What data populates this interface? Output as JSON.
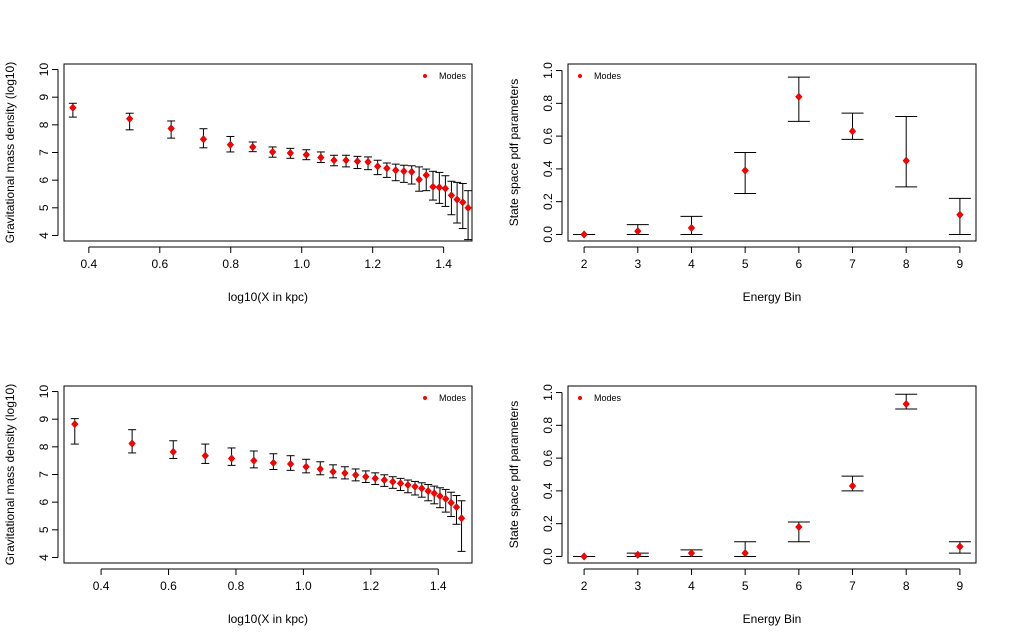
{
  "chart_data": [
    {
      "type": "scatter",
      "xlabel": "log10(X in kpc)",
      "ylabel": "Gravitational mass density (log10)",
      "xlim": [
        0.33,
        1.48
      ],
      "ylim": [
        3.8,
        10.2
      ],
      "xticks": [
        "0.4",
        "0.6",
        "0.8",
        "1.0",
        "1.2",
        "1.4"
      ],
      "yticks": [
        "4",
        "5",
        "6",
        "7",
        "8",
        "9",
        "10"
      ],
      "legend": {
        "label": "Modes",
        "placement": "top-right"
      },
      "series": [
        {
          "x": [
            0.355,
            0.515,
            0.632,
            0.723,
            0.799,
            0.862,
            0.918,
            0.968,
            1.013,
            1.054,
            1.091,
            1.125,
            1.157,
            1.187,
            1.214,
            1.24,
            1.265,
            1.288,
            1.31,
            1.331,
            1.351,
            1.37,
            1.388,
            1.405,
            1.422,
            1.438,
            1.454,
            1.469
          ],
          "y": [
            8.62,
            8.22,
            7.87,
            7.48,
            7.28,
            7.2,
            7.02,
            6.98,
            6.92,
            6.82,
            6.72,
            6.72,
            6.68,
            6.66,
            6.5,
            6.43,
            6.36,
            6.32,
            6.3,
            6.02,
            6.18,
            5.76,
            5.74,
            5.7,
            5.45,
            5.3,
            5.2,
            5.0
          ],
          "yerr_low": [
            8.28,
            7.82,
            7.52,
            7.17,
            7.02,
            7.03,
            6.83,
            6.79,
            6.74,
            6.64,
            6.52,
            6.48,
            6.42,
            6.38,
            6.2,
            6.1,
            5.98,
            5.92,
            5.86,
            5.6,
            5.62,
            5.28,
            5.16,
            5.05,
            4.75,
            4.45,
            4.25,
            3.85
          ],
          "yerr_high": [
            8.78,
            8.42,
            8.14,
            7.86,
            7.58,
            7.38,
            7.2,
            7.15,
            7.1,
            7.02,
            6.9,
            6.9,
            6.86,
            6.84,
            6.72,
            6.62,
            6.58,
            6.54,
            6.52,
            6.48,
            6.4,
            6.32,
            6.28,
            6.16,
            5.96,
            5.92,
            5.88,
            5.62
          ]
        }
      ]
    },
    {
      "type": "scatter",
      "xlabel": "Energy Bin",
      "ylabel": "State space pdf parameters",
      "xlim": [
        1.7,
        9.3
      ],
      "ylim": [
        -0.04,
        1.04
      ],
      "xticks": [
        "2",
        "3",
        "4",
        "5",
        "6",
        "7",
        "8",
        "9"
      ],
      "yticks": [
        "0.0",
        "0.2",
        "0.4",
        "0.6",
        "0.8",
        "1.0"
      ],
      "legend": {
        "label": "Modes",
        "placement": "top-left"
      },
      "series": [
        {
          "x": [
            2,
            3,
            4,
            5,
            6,
            7,
            8,
            9
          ],
          "y": [
            0.0,
            0.02,
            0.04,
            0.39,
            0.84,
            0.63,
            0.45,
            0.12
          ],
          "yerr_low": [
            0.0,
            0.0,
            0.0,
            0.25,
            0.69,
            0.58,
            0.29,
            0.0
          ],
          "yerr_high": [
            0.0,
            0.06,
            0.11,
            0.5,
            0.96,
            0.74,
            0.72,
            0.22
          ]
        }
      ]
    },
    {
      "type": "scatter",
      "xlabel": "log10(X in kpc)",
      "ylabel": "Gravitational mass density (log10)",
      "xlim": [
        0.29,
        1.5
      ],
      "ylim": [
        3.8,
        10.2
      ],
      "xticks": [
        "0.4",
        "0.6",
        "0.8",
        "1.0",
        "1.2",
        "1.4"
      ],
      "yticks": [
        "4",
        "5",
        "6",
        "7",
        "8",
        "9",
        "10"
      ],
      "legend": {
        "label": "Modes",
        "placement": "top-right"
      },
      "series": [
        {
          "x": [
            0.322,
            0.492,
            0.614,
            0.709,
            0.787,
            0.853,
            0.911,
            0.962,
            1.008,
            1.05,
            1.088,
            1.123,
            1.155,
            1.185,
            1.213,
            1.24,
            1.265,
            1.288,
            1.31,
            1.331,
            1.351,
            1.37,
            1.388,
            1.405,
            1.422,
            1.438,
            1.454,
            1.469
          ],
          "y": [
            8.82,
            8.12,
            7.82,
            7.68,
            7.58,
            7.5,
            7.42,
            7.38,
            7.28,
            7.2,
            7.1,
            7.05,
            6.98,
            6.92,
            6.86,
            6.8,
            6.74,
            6.68,
            6.62,
            6.56,
            6.5,
            6.4,
            6.32,
            6.22,
            6.12,
            5.98,
            5.82,
            5.42
          ],
          "yerr_low": [
            8.1,
            7.78,
            7.58,
            7.4,
            7.33,
            7.24,
            7.18,
            7.15,
            7.06,
            6.99,
            6.88,
            6.84,
            6.77,
            6.71,
            6.64,
            6.57,
            6.5,
            6.42,
            6.34,
            6.26,
            6.18,
            6.05,
            5.94,
            5.8,
            5.64,
            5.48,
            5.2,
            4.22
          ],
          "yerr_high": [
            9.02,
            8.62,
            8.22,
            8.1,
            7.96,
            7.85,
            7.75,
            7.68,
            7.55,
            7.46,
            7.35,
            7.28,
            7.2,
            7.13,
            7.06,
            6.99,
            6.92,
            6.86,
            6.8,
            6.75,
            6.7,
            6.64,
            6.58,
            6.52,
            6.46,
            6.36,
            6.24,
            6.05
          ]
        }
      ]
    },
    {
      "type": "scatter",
      "xlabel": "Energy Bin",
      "ylabel": "State space pdf parameters",
      "xlim": [
        1.7,
        9.3
      ],
      "ylim": [
        -0.04,
        1.04
      ],
      "xticks": [
        "2",
        "3",
        "4",
        "5",
        "6",
        "7",
        "8",
        "9"
      ],
      "yticks": [
        "0.0",
        "0.2",
        "0.4",
        "0.6",
        "0.8",
        "1.0"
      ],
      "legend": {
        "label": "Modes",
        "placement": "top-left"
      },
      "series": [
        {
          "x": [
            2,
            3,
            4,
            5,
            6,
            7,
            8,
            9
          ],
          "y": [
            0.0,
            0.01,
            0.02,
            0.02,
            0.18,
            0.43,
            0.93,
            0.06
          ],
          "yerr_low": [
            0.0,
            0.0,
            0.0,
            0.0,
            0.09,
            0.4,
            0.9,
            0.02
          ],
          "yerr_high": [
            0.0,
            0.02,
            0.04,
            0.09,
            0.21,
            0.49,
            0.99,
            0.09
          ]
        }
      ]
    }
  ]
}
